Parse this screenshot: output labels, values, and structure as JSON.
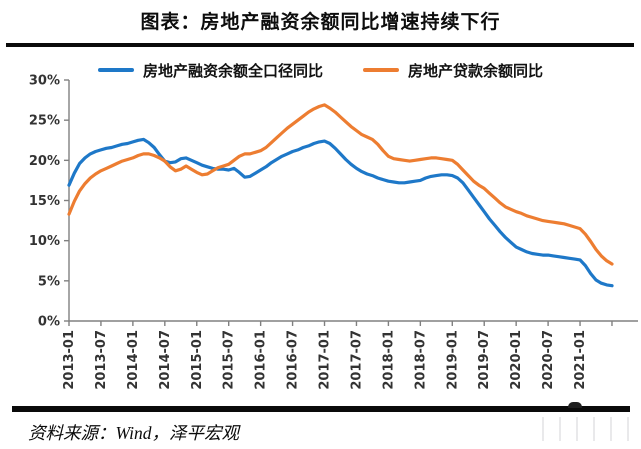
{
  "title": "图表：房地产融资余额同比增速持续下行",
  "source": "资料来源：Wind，泽平宏观",
  "colors": {
    "series_blue": "#1E78C8",
    "series_orange": "#ED7D31",
    "axis": "#808080",
    "tick_text": "#333333",
    "rule": "#0A0A0A"
  },
  "chart_data": {
    "type": "line",
    "title": "图表：房地产融资余额同比增速持续下行",
    "xlabel": "",
    "ylabel": "",
    "ylim": [
      0,
      30
    ],
    "grid": false,
    "legend_position": "top",
    "y_tick_labels": [
      "0%",
      "5%",
      "10%",
      "15%",
      "20%",
      "25%",
      "30%"
    ],
    "x_tick_labels": [
      "2013-01",
      "2013-07",
      "2014-01",
      "2014-07",
      "2015-01",
      "2015-07",
      "2016-01",
      "2016-07",
      "2017-01",
      "2017-07",
      "2018-01",
      "2018-07",
      "2019-01",
      "2019-07",
      "2020-01",
      "2020-07",
      "2021-01"
    ],
    "x_start": "2013-01",
    "x_unit": "month",
    "months_per_labeled_tick": 6,
    "series": [
      {
        "name": "房地产融资余额全口径同比",
        "color": "#1E78C8",
        "values": [
          16.9,
          18.4,
          19.6,
          20.3,
          20.8,
          21.1,
          21.3,
          21.5,
          21.6,
          21.8,
          22.0,
          22.1,
          22.3,
          22.5,
          22.6,
          22.2,
          21.6,
          20.7,
          19.9,
          19.7,
          19.8,
          20.2,
          20.3,
          20.0,
          19.7,
          19.4,
          19.2,
          19.0,
          18.9,
          18.9,
          18.8,
          19.0,
          18.5,
          17.9,
          18.0,
          18.4,
          18.8,
          19.2,
          19.7,
          20.1,
          20.5,
          20.8,
          21.1,
          21.3,
          21.6,
          21.8,
          22.1,
          22.3,
          22.4,
          22.1,
          21.5,
          20.8,
          20.1,
          19.5,
          19.0,
          18.6,
          18.3,
          18.1,
          17.8,
          17.6,
          17.4,
          17.3,
          17.2,
          17.2,
          17.3,
          17.4,
          17.5,
          17.8,
          18.0,
          18.1,
          18.2,
          18.2,
          18.1,
          17.8,
          17.2,
          16.3,
          15.4,
          14.5,
          13.6,
          12.7,
          11.9,
          11.1,
          10.4,
          9.8,
          9.2,
          8.9,
          8.6,
          8.4,
          8.3,
          8.2,
          8.2,
          8.1,
          8.0,
          7.9,
          7.8,
          7.7,
          7.6,
          6.9,
          5.9,
          5.1,
          4.7,
          4.5,
          4.4
        ]
      },
      {
        "name": "房地产贷款余额同比",
        "color": "#ED7D31",
        "values": [
          13.3,
          14.9,
          16.2,
          17.1,
          17.8,
          18.3,
          18.7,
          19.0,
          19.3,
          19.6,
          19.9,
          20.1,
          20.3,
          20.6,
          20.8,
          20.8,
          20.6,
          20.3,
          19.9,
          19.2,
          18.7,
          18.9,
          19.3,
          18.9,
          18.5,
          18.2,
          18.3,
          18.7,
          19.1,
          19.3,
          19.5,
          20.0,
          20.5,
          20.8,
          20.8,
          21.0,
          21.2,
          21.6,
          22.2,
          22.8,
          23.4,
          24.0,
          24.5,
          25.0,
          25.5,
          26.0,
          26.4,
          26.7,
          26.9,
          26.5,
          26.0,
          25.4,
          24.8,
          24.2,
          23.7,
          23.2,
          22.9,
          22.6,
          22.0,
          21.2,
          20.5,
          20.2,
          20.1,
          20.0,
          19.9,
          20.0,
          20.1,
          20.2,
          20.3,
          20.3,
          20.2,
          20.1,
          20.0,
          19.5,
          18.8,
          18.1,
          17.4,
          16.9,
          16.5,
          15.9,
          15.3,
          14.7,
          14.2,
          13.9,
          13.6,
          13.4,
          13.1,
          12.9,
          12.7,
          12.5,
          12.4,
          12.3,
          12.2,
          12.1,
          11.9,
          11.7,
          11.5,
          10.8,
          9.9,
          8.9,
          8.1,
          7.5,
          7.1
        ]
      }
    ]
  }
}
